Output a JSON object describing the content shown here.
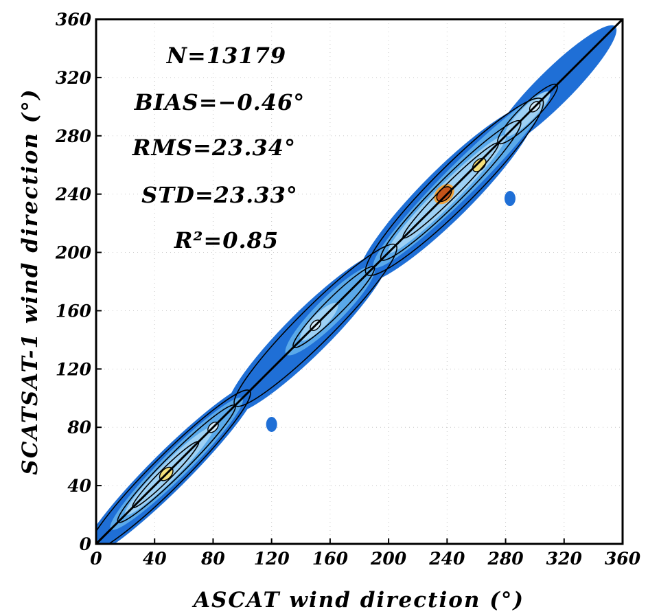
{
  "chart_data": {
    "type": "heatmap",
    "title": "",
    "xlabel": "ASCAT wind direction (°)",
    "ylabel": "SCATSAT-1 wind direction (°)",
    "xlim": [
      0,
      360
    ],
    "ylim": [
      0,
      360
    ],
    "x_ticks": [
      "0",
      "40",
      "80",
      "120",
      "160",
      "200",
      "240",
      "280",
      "320",
      "360"
    ],
    "y_ticks": [
      "0",
      "40",
      "80",
      "120",
      "160",
      "200",
      "240",
      "280",
      "320",
      "360"
    ],
    "grid": true,
    "statistics": [
      {
        "key": "n",
        "label": "N=13179"
      },
      {
        "key": "bias",
        "label": "BIAS=−0.46°"
      },
      {
        "key": "rms",
        "label": "RMS=23.34°"
      },
      {
        "key": "std",
        "label": "STD=23.33°"
      },
      {
        "key": "r2",
        "label": "R²=0.85"
      }
    ],
    "reference_line": {
      "from": [
        0,
        0
      ],
      "to": [
        360,
        360
      ]
    },
    "density_hotspots": [
      {
        "x": 48,
        "y": 48,
        "level": "high"
      },
      {
        "x": 80,
        "y": 80,
        "level": "medium"
      },
      {
        "x": 150,
        "y": 150,
        "level": "medium"
      },
      {
        "x": 238,
        "y": 240,
        "level": "peak"
      },
      {
        "x": 262,
        "y": 260,
        "level": "high"
      },
      {
        "x": 300,
        "y": 300,
        "level": "medium"
      }
    ],
    "outliers": [
      {
        "x": 120,
        "y": 82
      },
      {
        "x": 283,
        "y": 237
      }
    ],
    "colors": {
      "low": "#1f6fd6",
      "mid": "#5aa9ea",
      "midhigh": "#9dd0f4",
      "pale": "#d4ecfb",
      "high": "#f4e07a",
      "higher": "#f0a23c",
      "peak": "#c4541a",
      "contour": "#000000"
    }
  }
}
